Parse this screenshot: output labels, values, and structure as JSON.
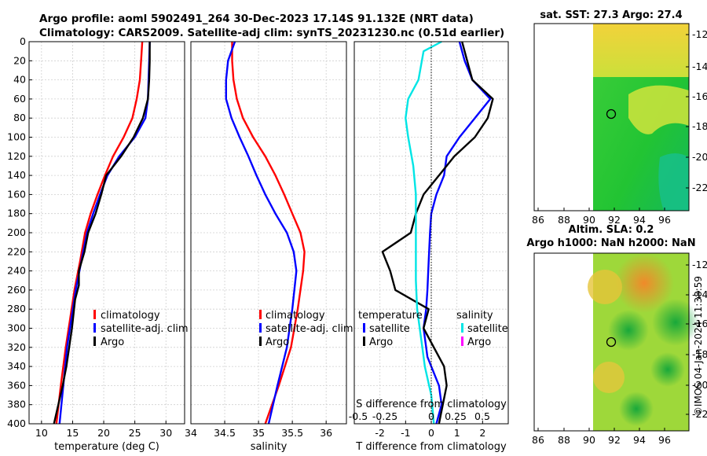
{
  "header": {
    "title_line1": "Argo profile: aoml 5902491_264 30-Dec-2023 17.14S 91.132E (NRT data)",
    "title_line2": "Climatology: CARS2009. Satellite-adj clim: synTS_20231230.nc (0.51d earlier)"
  },
  "watermark": "©IMOS 04-Jan-2024 11:38:59",
  "colors": {
    "climatology": "#ff0000",
    "satellite": "#0000ff",
    "argo": "#000000",
    "sat_salinity": "#00e5e5",
    "argo_salinity": "#ff00ff"
  },
  "chart_data": [
    {
      "type": "line",
      "name": "temperature",
      "xlabel": "temperature (deg C)",
      "ylabel": "depth",
      "xlim": [
        8,
        33
      ],
      "ylim": [
        400,
        0
      ],
      "xticks": [
        10,
        15,
        20,
        25,
        30
      ],
      "yticks": [
        0,
        20,
        40,
        60,
        80,
        100,
        120,
        140,
        160,
        180,
        200,
        220,
        240,
        260,
        280,
        300,
        320,
        340,
        360,
        380,
        400
      ],
      "legend": [
        "climatology",
        "satellite-adj. clim",
        "Argo"
      ],
      "series": [
        {
          "name": "climatology",
          "color": "#ff0000",
          "x": [
            26.2,
            26.0,
            25.8,
            25.3,
            24.6,
            23.2,
            21.5,
            20.2,
            19.0,
            17.9,
            17.0,
            16.2,
            15.3,
            14.6,
            13.9,
            13.1,
            12.4
          ],
          "y": [
            0,
            20,
            40,
            60,
            80,
            100,
            120,
            140,
            160,
            180,
            200,
            230,
            260,
            290,
            320,
            360,
            400
          ]
        },
        {
          "name": "satellite-adj. clim",
          "color": "#0000ff",
          "x": [
            27.4,
            27.3,
            27.2,
            27.1,
            26.7,
            25.0,
            22.5,
            20.6,
            19.4,
            18.3,
            17.3,
            16.4,
            15.5,
            14.8,
            14.1,
            13.5,
            12.9
          ],
          "y": [
            0,
            20,
            40,
            60,
            80,
            100,
            120,
            140,
            160,
            180,
            200,
            230,
            260,
            290,
            320,
            360,
            400
          ]
        },
        {
          "name": "Argo",
          "color": "#000000",
          "x": [
            27.4,
            27.4,
            27.3,
            27.1,
            26.3,
            24.8,
            22.8,
            20.4,
            19.6,
            18.7,
            17.5,
            16.9,
            16.0,
            16.0,
            15.4,
            14.9,
            14.0,
            13.4,
            12.0
          ],
          "y": [
            0,
            20,
            40,
            60,
            80,
            100,
            120,
            140,
            160,
            180,
            200,
            220,
            240,
            255,
            270,
            300,
            340,
            360,
            400
          ]
        }
      ]
    },
    {
      "type": "line",
      "name": "salinity",
      "xlabel": "salinity",
      "xlim": [
        34,
        36.3
      ],
      "ylim": [
        400,
        0
      ],
      "xticks": [
        34,
        34.5,
        35,
        35.5,
        36
      ],
      "xtick_labels": [
        "34",
        "34.5",
        "35",
        "35.5",
        "36"
      ],
      "legend": [
        "climatology",
        "satellite-adj. clim",
        "Argo"
      ],
      "series": [
        {
          "name": "climatology",
          "color": "#ff0000",
          "x": [
            34.61,
            34.61,
            34.63,
            34.68,
            34.77,
            34.92,
            35.1,
            35.25,
            35.38,
            35.5,
            35.62,
            35.68,
            35.66,
            35.58,
            35.48,
            35.3,
            35.1
          ],
          "y": [
            0,
            20,
            40,
            60,
            80,
            100,
            120,
            140,
            160,
            180,
            200,
            220,
            240,
            280,
            320,
            360,
            400
          ]
        },
        {
          "name": "satellite-adj. clim",
          "color": "#0000ff",
          "x": [
            34.65,
            34.55,
            34.52,
            34.52,
            34.6,
            34.72,
            34.85,
            34.97,
            35.1,
            35.25,
            35.42,
            35.52,
            35.56,
            35.5,
            35.42,
            35.28,
            35.15
          ],
          "y": [
            0,
            20,
            40,
            60,
            80,
            100,
            120,
            140,
            160,
            180,
            200,
            220,
            240,
            280,
            320,
            360,
            400
          ]
        }
      ]
    },
    {
      "type": "line",
      "name": "difference from climatology",
      "xlabel": "T difference from climatology",
      "top_xlabel": "S difference from climatology",
      "xlim": [
        -3,
        3
      ],
      "ylim": [
        400,
        0
      ],
      "xticks": [
        -2,
        -1,
        0,
        1,
        2
      ],
      "top_xtick_labels": [
        "-0.5",
        "-0.25",
        "0",
        "0.25",
        "0.5"
      ],
      "legend_temperature_title": "temperature",
      "legend_salinity_title": "salinity",
      "legend_entries": [
        "satellite",
        "Argo"
      ],
      "series": [
        {
          "name": "satellite (temperature)",
          "color": "#0000ff",
          "x": [
            1.1,
            1.3,
            1.6,
            2.3,
            1.7,
            1.1,
            0.6,
            0.5,
            0.2,
            0.0,
            -0.05,
            -0.1,
            -0.15,
            -0.2,
            -0.3,
            -0.15,
            0.3,
            0.4,
            0.2
          ],
          "y": [
            0,
            20,
            40,
            60,
            80,
            100,
            120,
            140,
            160,
            180,
            200,
            230,
            260,
            280,
            300,
            330,
            360,
            380,
            400
          ]
        },
        {
          "name": "Argo (temperature)",
          "color": "#000000",
          "x": [
            1.2,
            1.4,
            1.6,
            2.4,
            2.2,
            1.7,
            0.9,
            0.3,
            -0.3,
            -0.6,
            -0.8,
            -1.9,
            -1.6,
            -1.4,
            -0.1,
            -0.3,
            0.5,
            0.6,
            0.3
          ],
          "y": [
            0,
            20,
            40,
            60,
            80,
            100,
            120,
            140,
            160,
            180,
            200,
            220,
            240,
            260,
            280,
            300,
            340,
            360,
            400
          ]
        },
        {
          "name": "satellite (salinity)",
          "color": "#00e5e5",
          "x": [
            0.4,
            -0.3,
            -0.5,
            -0.9,
            -1.0,
            -0.9,
            -0.7,
            -0.6,
            -0.6,
            -0.6,
            -0.6,
            -0.55,
            -0.45,
            -0.35,
            -0.25,
            0.0,
            0.1
          ],
          "y": [
            0,
            10,
            40,
            60,
            80,
            100,
            130,
            160,
            190,
            220,
            250,
            280,
            300,
            320,
            340,
            370,
            400
          ]
        }
      ]
    },
    {
      "type": "heatmap",
      "name": "sat_sst_map",
      "title": "sat. SST: 27.3 Argo: 27.4",
      "xticks": [
        "86",
        "88",
        "90",
        "92",
        "94",
        "96"
      ],
      "yticks": [
        "-12",
        "-14",
        "-16",
        "-18",
        "-20",
        "-22"
      ],
      "marker": {
        "lon": 91.13,
        "lat": -17.14
      }
    },
    {
      "type": "heatmap",
      "name": "altim_sla_map",
      "title_line1": "Altim. SLA: 0.2",
      "title_line2": "Argo h1000: NaN h2000: NaN",
      "xticks": [
        "86",
        "88",
        "90",
        "92",
        "94",
        "96"
      ],
      "yticks": [
        "-12",
        "-14",
        "-16",
        "-18",
        "-20",
        "-22"
      ],
      "marker": {
        "lon": 91.13,
        "lat": -17.14
      }
    }
  ]
}
